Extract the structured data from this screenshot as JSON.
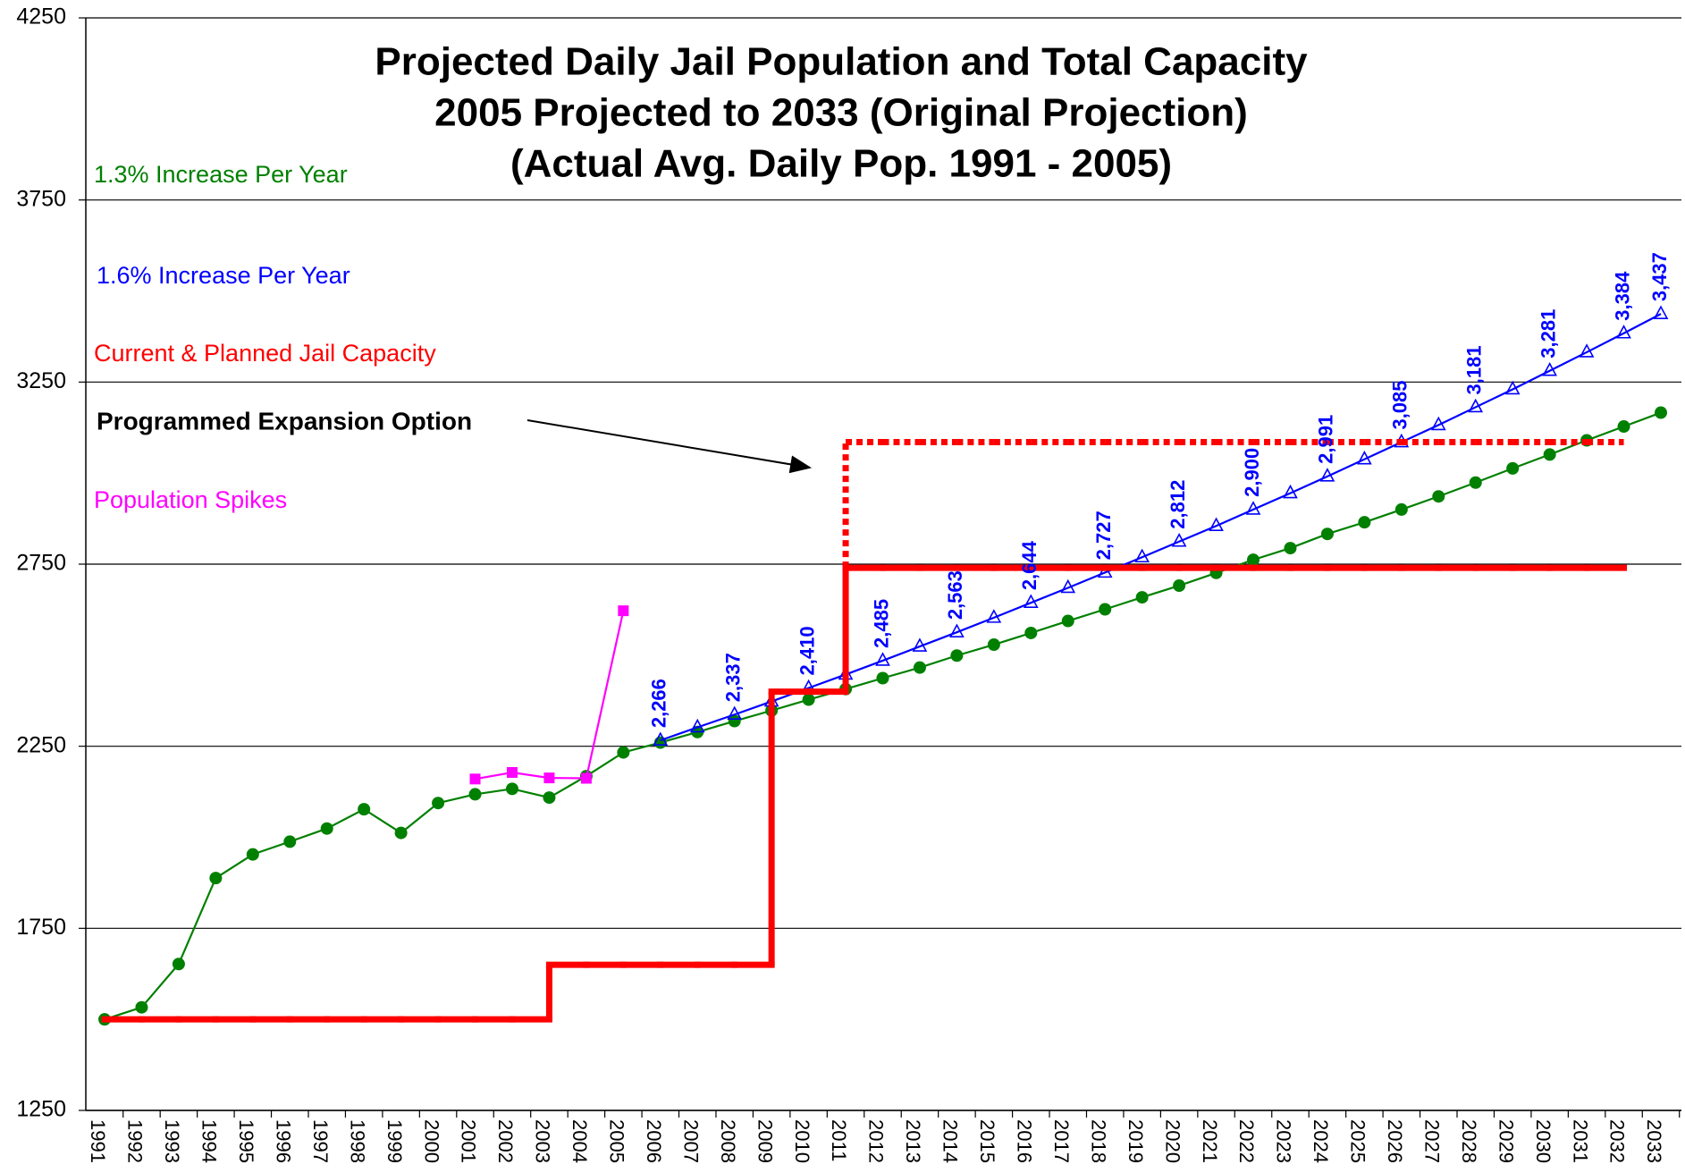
{
  "chart_data": {
    "type": "line",
    "title_lines": [
      "Projected Daily Jail Population and Total Capacity",
      "2005 Projected to 2033 (Original Projection)",
      "(Actual Avg. Daily Pop. 1991 - 2005)"
    ],
    "categories": [
      "1991",
      "1992",
      "1993",
      "1994",
      "1995",
      "1996",
      "1997",
      "1998",
      "1999",
      "2000",
      "2001",
      "2002",
      "2003",
      "2004",
      "2005",
      "2006",
      "2007",
      "2008",
      "2009",
      "2010",
      "2011",
      "2012",
      "2013",
      "2014",
      "2015",
      "2016",
      "2017",
      "2018",
      "2019",
      "2020",
      "2021",
      "2022",
      "2023",
      "2024",
      "2025",
      "2026",
      "2027",
      "2028",
      "2029",
      "2030",
      "2031",
      "2032",
      "2033"
    ],
    "ylim": [
      1250,
      4250
    ],
    "yticks": [
      1250,
      1750,
      2250,
      2750,
      3250,
      3750,
      4250
    ],
    "grid": true,
    "annotation": "Programmed Expansion Option",
    "series": [
      {
        "name": "1.3% Increase Per Year",
        "color": "#008000",
        "marker": "circle",
        "values": [
          1500,
          1533,
          1652,
          1888,
          1953,
          1988,
          2024,
          2077,
          2012,
          2094,
          2118,
          2133,
          2109,
          2168,
          2233,
          2260,
          2289,
          2319,
          2348,
          2378,
          2407,
          2437,
          2466,
          2499,
          2529,
          2561,
          2594,
          2626,
          2659,
          2691,
          2726,
          2762,
          2794,
          2833,
          2865,
          2900,
          2936,
          2974,
          3013,
          3051,
          3090,
          3128,
          3166
        ]
      },
      {
        "name": "1.6% Increase Per Year",
        "color": "#0000ff",
        "marker": "triangle",
        "values": [
          null,
          null,
          null,
          null,
          null,
          null,
          null,
          null,
          null,
          null,
          null,
          null,
          null,
          null,
          null,
          2266,
          2302,
          2337,
          2373,
          2410,
          2447,
          2485,
          2524,
          2563,
          2603,
          2644,
          2685,
          2727,
          2769,
          2812,
          2855,
          2900,
          2945,
          2991,
          3038,
          3085,
          3132,
          3181,
          3230,
          3281,
          3332,
          3384,
          3437
        ],
        "value_labels": [
          null,
          null,
          null,
          null,
          null,
          null,
          null,
          null,
          null,
          null,
          null,
          null,
          null,
          null,
          null,
          "2,266",
          null,
          "2,337",
          null,
          "2,410",
          null,
          "2,485",
          null,
          "2,563",
          null,
          "2,644",
          null,
          "2,727",
          null,
          "2,812",
          null,
          "2,900",
          null,
          "2,991",
          null,
          "3,085",
          null,
          "3,181",
          null,
          "3,281",
          null,
          "3,384",
          "3,437"
        ]
      },
      {
        "name": "Current & Planned Jail Capacity",
        "color": "#ff0000",
        "step": true,
        "values": [
          1500,
          1500,
          1500,
          1500,
          1500,
          1500,
          1500,
          1500,
          1500,
          1500,
          1500,
          1500,
          1650,
          1650,
          1650,
          1650,
          1650,
          1650,
          2400,
          2400,
          2740,
          2740,
          2740,
          2740,
          2740,
          2740,
          2740,
          2740,
          2740,
          2740,
          2740,
          2740,
          2740,
          2740,
          2740,
          2740,
          2740,
          2740,
          2740,
          2740,
          2740,
          null,
          null
        ]
      },
      {
        "name": "Programmed Expansion Option",
        "color": "#ff0000",
        "step": true,
        "dashed": true,
        "legend_color": "#000000",
        "values": [
          null,
          null,
          null,
          null,
          null,
          null,
          null,
          null,
          null,
          null,
          null,
          null,
          null,
          null,
          null,
          null,
          null,
          null,
          null,
          null,
          3085,
          3085,
          3085,
          3085,
          3085,
          3085,
          3085,
          3085,
          3085,
          3085,
          3085,
          3085,
          3085,
          3085,
          3085,
          3085,
          3085,
          3085,
          3085,
          3085,
          3085,
          null,
          null
        ]
      },
      {
        "name": "Population Spikes",
        "color": "#ff00ff",
        "marker": "square",
        "values": [
          null,
          null,
          null,
          null,
          null,
          null,
          null,
          null,
          null,
          null,
          2160,
          2178,
          2163,
          2162,
          2622,
          null,
          null,
          null,
          null,
          null,
          null,
          null,
          null,
          null,
          null,
          null,
          null,
          null,
          null,
          null,
          null,
          null,
          null,
          null,
          null,
          null,
          null,
          null,
          null,
          null,
          null,
          null,
          null
        ]
      }
    ]
  }
}
